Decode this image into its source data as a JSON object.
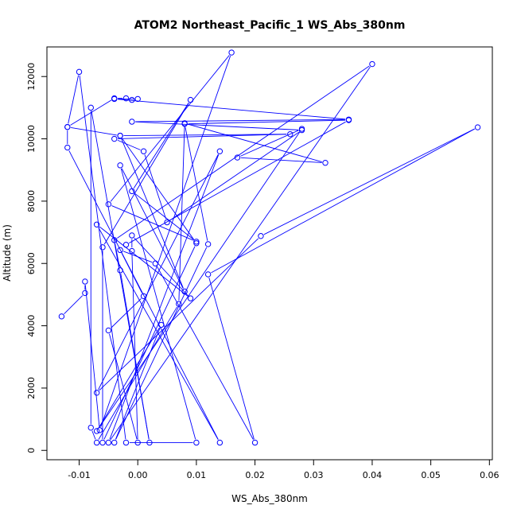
{
  "chart_data": {
    "type": "line",
    "title": "ATOM2 Northeast_Pacific_1 WS_Abs_380nm",
    "xlabel": "WS_Abs_380nm",
    "ylabel": "Altitude (m)",
    "xlim": [
      -0.0155,
      0.0605
    ],
    "ylim": [
      -300,
      12950
    ],
    "x_ticks": [
      -0.01,
      0.0,
      0.01,
      0.02,
      0.03,
      0.04,
      0.05,
      0.06
    ],
    "x_tick_labels": [
      "-0.01",
      "0.00",
      "0.01",
      "0.02",
      "0.03",
      "0.04",
      "0.05",
      "0.06"
    ],
    "y_ticks": [
      0,
      2000,
      4000,
      6000,
      8000,
      10000,
      12000
    ],
    "y_tick_labels": [
      "0",
      "2000",
      "4000",
      "6000",
      "8000",
      "10000",
      "12000"
    ],
    "grid": false,
    "legend": "none",
    "line_color": "#0000ff",
    "marker": "open-circle",
    "series": [
      {
        "points": [
          [
            -0.013,
            4300
          ],
          [
            -0.009,
            5050
          ],
          [
            -0.009,
            5420
          ],
          [
            -0.0065,
            650
          ],
          [
            0.016,
            12770
          ],
          [
            -0.005,
            7900
          ],
          [
            0.01,
            6700
          ],
          [
            -0.001,
            8320
          ],
          [
            0.009,
            11250
          ],
          [
            -0.006,
            6520
          ],
          [
            -0.006,
            250
          ],
          [
            0.01,
            6650
          ],
          [
            -0.003,
            10100
          ],
          [
            0.026,
            10150
          ],
          [
            -0.004,
            10000
          ],
          [
            0.001,
            9600
          ],
          [
            0.005,
            7320
          ],
          [
            0.028,
            10280
          ],
          [
            -0.001,
            10550
          ],
          [
            0.036,
            10620
          ],
          [
            -0.004,
            11280
          ],
          [
            0.0,
            11280
          ],
          [
            -0.001,
            11250
          ],
          [
            -0.002,
            11300
          ],
          [
            -0.004,
            11300
          ],
          [
            -0.012,
            10380
          ],
          [
            -0.01,
            12150
          ],
          [
            -0.002,
            250
          ],
          [
            0.01,
            250
          ],
          [
            -0.003,
            9150
          ],
          [
            0.008,
            5100
          ],
          [
            -0.003,
            10100
          ],
          [
            -0.012,
            10380
          ],
          [
            -0.012,
            9720
          ],
          [
            0.014,
            250
          ],
          [
            -0.007,
            7250
          ],
          [
            0.009,
            4880
          ],
          [
            -0.001,
            6900
          ],
          [
            -0.001,
            6400
          ],
          [
            0.0,
            250
          ],
          [
            -0.005,
            3850
          ],
          [
            0.001,
            4950
          ],
          [
            -0.003,
            6430
          ],
          [
            0.003,
            6000
          ],
          [
            0.02,
            250
          ],
          [
            0.012,
            5650
          ],
          [
            0.058,
            10370
          ],
          [
            0.021,
            6880
          ],
          [
            -0.007,
            1850
          ],
          [
            0.014,
            9600
          ],
          [
            -0.005,
            250
          ],
          [
            0.04,
            12400
          ],
          [
            -0.004,
            6750
          ],
          [
            -0.003,
            5780
          ],
          [
            0.002,
            250
          ],
          [
            -0.008,
            11000
          ],
          [
            -0.008,
            730
          ],
          [
            -0.007,
            250
          ],
          [
            0.007,
            4700
          ],
          [
            0.008,
            10500
          ],
          [
            0.032,
            9230
          ],
          [
            0.017,
            9400
          ],
          [
            0.028,
            10320
          ],
          [
            -0.007,
            620
          ],
          [
            0.004,
            4030
          ],
          [
            -0.004,
            250
          ],
          [
            0.012,
            6620
          ],
          [
            0.008,
            10480
          ],
          [
            0.036,
            10600
          ],
          [
            -0.002,
            6600
          ]
        ]
      }
    ]
  }
}
